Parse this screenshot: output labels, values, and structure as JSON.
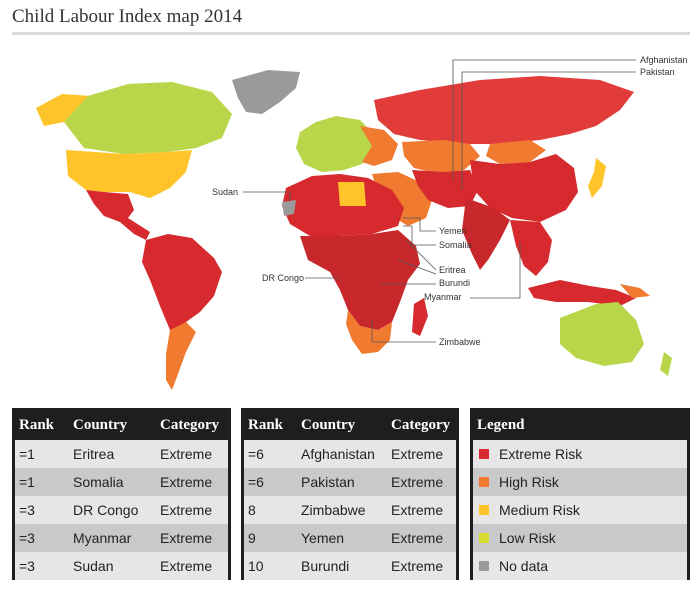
{
  "title": "Child Labour Index map 2014",
  "colors": {
    "extreme": "#d62a2e",
    "high": "#f07a30",
    "medium": "#fec42a",
    "low": "#b9d64a",
    "nodata": "#9a9a9a"
  },
  "map_labels": {
    "afghanistan": "Afghanistan",
    "pakistan": "Pakistan",
    "sudan": "Sudan",
    "yemen": "Yemen",
    "somalia": "Somalia",
    "eritrea": "Eritrea",
    "burundi": "Burundi",
    "myanmar": "Myanmar",
    "dr_congo": "DR Congo",
    "zimbabwe": "Zimbabwe"
  },
  "table_headers": {
    "rank": "Rank",
    "country": "Country",
    "category": "Category"
  },
  "table1": [
    {
      "rank": "=1",
      "country": "Eritrea",
      "category": "Extreme"
    },
    {
      "rank": "=1",
      "country": "Somalia",
      "category": "Extreme"
    },
    {
      "rank": "=3",
      "country": "DR Congo",
      "category": "Extreme"
    },
    {
      "rank": "=3",
      "country": "Myanmar",
      "category": "Extreme"
    },
    {
      "rank": "=3",
      "country": "Sudan",
      "category": "Extreme"
    }
  ],
  "table2": [
    {
      "rank": "=6",
      "country": "Afghanistan",
      "category": "Extreme"
    },
    {
      "rank": "=6",
      "country": "Pakistan",
      "category": "Extreme"
    },
    {
      "rank": "8",
      "country": "Zimbabwe",
      "category": "Extreme"
    },
    {
      "rank": "9",
      "country": "Yemen",
      "category": "Extreme"
    },
    {
      "rank": "10",
      "country": "Burundi",
      "category": "Extreme"
    }
  ],
  "legend": {
    "title": "Legend",
    "items": [
      {
        "label": "Extreme Risk",
        "color": "#d62a2e"
      },
      {
        "label": "High Risk",
        "color": "#f07a30"
      },
      {
        "label": "Medium Risk",
        "color": "#fec42a"
      },
      {
        "label": "Low Risk",
        "color": "#d7dc34"
      },
      {
        "label": "No data",
        "color": "#9a9a9a"
      }
    ]
  }
}
